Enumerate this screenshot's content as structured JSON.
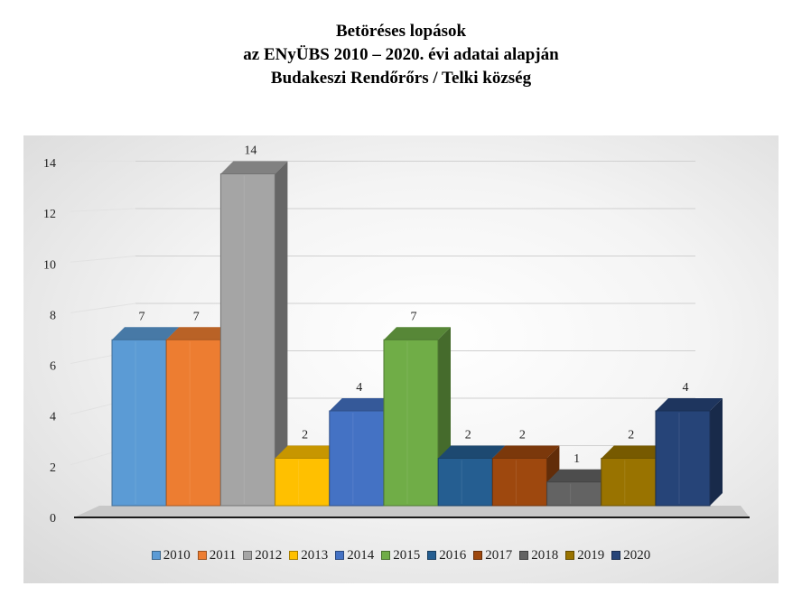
{
  "title": {
    "line1": "Betöréses lopások",
    "line2": "az ENyÜBS 2010 – 2020. évi adatai alapján",
    "line3": "Budakeszi Rendőrőrs / Telki község"
  },
  "chart_data": {
    "type": "bar",
    "title": "",
    "xlabel": "",
    "ylabel": "",
    "ylim": [
      0,
      14
    ],
    "yticks": [
      0,
      2,
      4,
      6,
      8,
      10,
      12,
      14
    ],
    "grid": true,
    "legend_position": "bottom",
    "series": [
      {
        "name": "2010",
        "value": 7,
        "color": "#5b9bd5"
      },
      {
        "name": "2011",
        "value": 7,
        "color": "#ed7d31"
      },
      {
        "name": "2012",
        "value": 14,
        "color": "#a5a5a5"
      },
      {
        "name": "2013",
        "value": 2,
        "color": "#ffc000"
      },
      {
        "name": "2014",
        "value": 4,
        "color": "#4472c4"
      },
      {
        "name": "2015",
        "value": 7,
        "color": "#70ad47"
      },
      {
        "name": "2016",
        "value": 2,
        "color": "#255e91"
      },
      {
        "name": "2017",
        "value": 2,
        "color": "#9e480e"
      },
      {
        "name": "2018",
        "value": 1,
        "color": "#636363"
      },
      {
        "name": "2019",
        "value": 2,
        "color": "#997300"
      },
      {
        "name": "2020",
        "value": 4,
        "color": "#264478"
      }
    ]
  }
}
